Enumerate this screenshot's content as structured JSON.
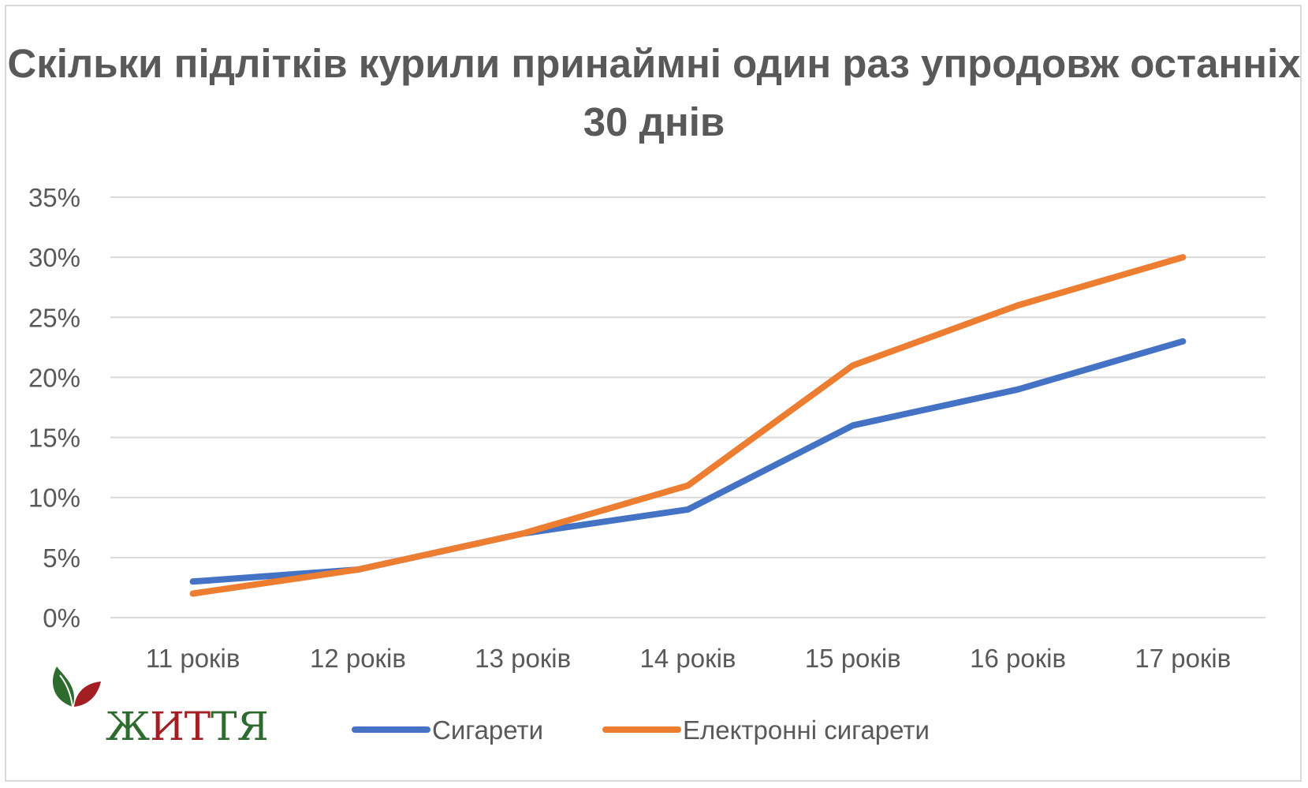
{
  "logo": {
    "text_first": "Ж",
    "text_mid": "ИТ",
    "text_rest": "ТЯ",
    "leaf_dark": "#2e6b2e",
    "leaf_red": "#a31e22",
    "text_green": "#2e6b2e",
    "text_red": "#a31e22"
  },
  "chart_data": {
    "type": "line",
    "title": "Скільки підлітків курили принаймні один раз упродовж останніх 30 днів",
    "categories": [
      "11 років",
      "12 років",
      "13 років",
      "14 років",
      "15 років",
      "16 років",
      "17 років"
    ],
    "y_ticks": [
      "0%",
      "5%",
      "10%",
      "15%",
      "20%",
      "25%",
      "30%",
      "35%"
    ],
    "ylim": [
      0,
      35
    ],
    "y_unit": "%",
    "grid": true,
    "legend_position": "bottom",
    "series": [
      {
        "name": "Сигарети",
        "color": "#4472c4",
        "values": [
          3,
          4,
          7,
          9,
          16,
          19,
          23
        ]
      },
      {
        "name": "Електронні сигарети",
        "color": "#ed7d31",
        "values": [
          2,
          4,
          7,
          11,
          21,
          26,
          30
        ]
      }
    ]
  }
}
